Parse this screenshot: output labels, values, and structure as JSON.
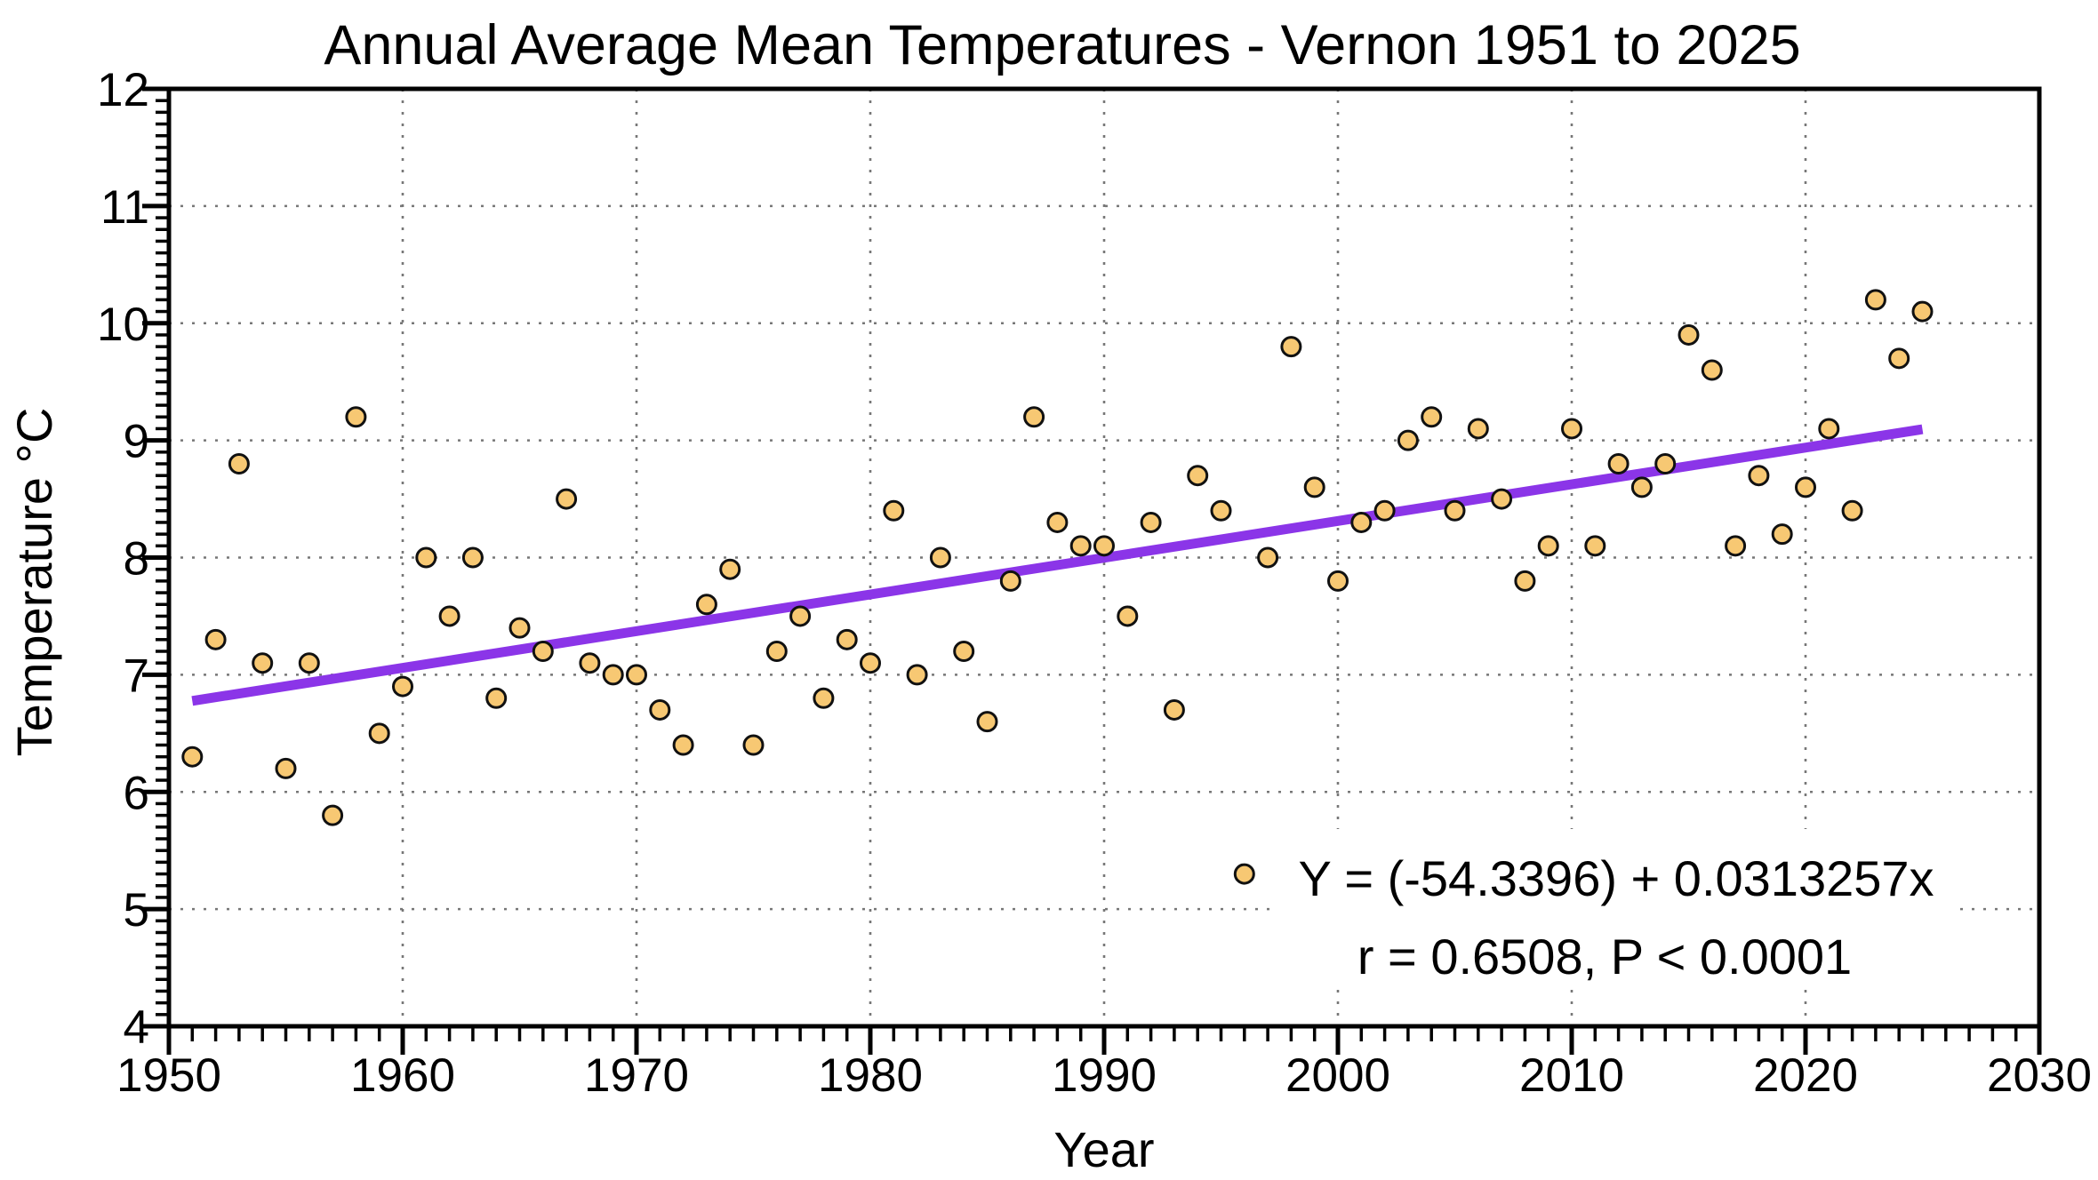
{
  "chart_data": {
    "type": "scatter",
    "title": "Annual Average Mean Temperatures - Vernon 1951 to 2025",
    "xlabel": "Year",
    "ylabel": "Temperature °C",
    "xlim": [
      1950,
      2030
    ],
    "ylim": [
      4,
      12
    ],
    "x_major_ticks": [
      1950,
      1960,
      1970,
      1980,
      1990,
      2000,
      2010,
      2020,
      2030
    ],
    "y_major_ticks": [
      4,
      5,
      6,
      7,
      8,
      9,
      10,
      11,
      12
    ],
    "x_minor_step": 1,
    "y_minor_step": 0.1,
    "grid": "dotted gridlines at major ticks, full plot box, ticks outside",
    "legend": "none",
    "series": [
      {
        "name": "annual-mean-temperature",
        "x": [
          1951,
          1952,
          1953,
          1954,
          1955,
          1956,
          1957,
          1958,
          1959,
          1960,
          1961,
          1962,
          1963,
          1964,
          1965,
          1966,
          1967,
          1968,
          1969,
          1970,
          1971,
          1972,
          1973,
          1974,
          1975,
          1976,
          1977,
          1978,
          1979,
          1980,
          1981,
          1982,
          1983,
          1984,
          1985,
          1986,
          1987,
          1988,
          1989,
          1990,
          1991,
          1992,
          1993,
          1994,
          1995,
          1996,
          1997,
          1998,
          1999,
          2000,
          2001,
          2002,
          2003,
          2004,
          2005,
          2006,
          2007,
          2008,
          2009,
          2010,
          2011,
          2012,
          2013,
          2014,
          2015,
          2016,
          2017,
          2018,
          2019,
          2020,
          2021,
          2022,
          2023,
          2024,
          2025
        ],
        "y": [
          6.3,
          7.3,
          8.8,
          7.1,
          6.2,
          7.1,
          5.8,
          9.2,
          6.5,
          6.9,
          8.0,
          7.5,
          8.0,
          6.8,
          7.4,
          7.2,
          8.5,
          7.1,
          7.0,
          7.0,
          6.7,
          6.4,
          7.6,
          7.9,
          6.4,
          7.2,
          7.5,
          6.8,
          7.3,
          7.1,
          8.4,
          7.0,
          8.0,
          7.2,
          6.6,
          7.8,
          9.2,
          8.3,
          8.1,
          8.1,
          7.5,
          8.3,
          6.7,
          8.7,
          8.4,
          5.3,
          8.0,
          9.8,
          8.6,
          7.8,
          8.3,
          8.4,
          9.0,
          9.2,
          8.4,
          9.1,
          8.5,
          7.8,
          8.1,
          9.1,
          8.1,
          8.8,
          8.6,
          8.8,
          9.9,
          9.6,
          8.1,
          8.7,
          8.2,
          8.6,
          9.1,
          8.4,
          10.2,
          9.7,
          10.1
        ]
      }
    ],
    "trendline": {
      "slope": 0.0313257,
      "intercept": -54.3396,
      "x_start": 1951,
      "x_end": 2025
    },
    "annotation": {
      "line1": "Y = (-54.3396) + 0.0313257x",
      "line2": "r = 0.6508, P < 0.0001"
    },
    "style": {
      "marker_fill": "#f7c873",
      "marker_stroke": "#111111",
      "trend_color": "#8b35e8",
      "annotation_color": "#8b2be2",
      "grid_color": "#777777",
      "axis_color": "#000000",
      "background": "#ffffff"
    }
  }
}
